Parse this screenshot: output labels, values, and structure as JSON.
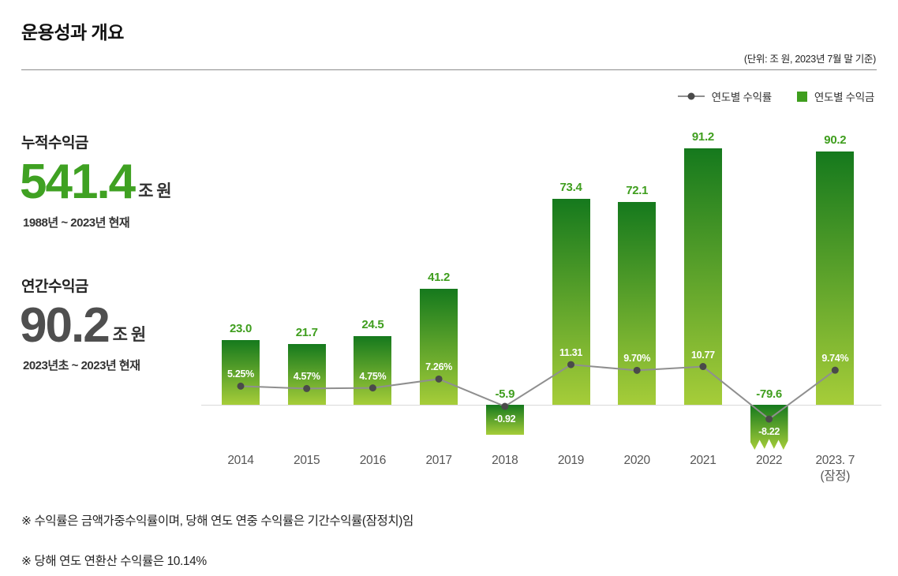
{
  "header": {
    "title": "운용성과 개요",
    "unit_note": "(단위: 조 원, 2023년 7월 말 기준)"
  },
  "summary": {
    "cumulative": {
      "label": "누적수익금",
      "value": "541.4",
      "unit": "조 원",
      "period": "1988년 ~ 2023년 현재"
    },
    "annual": {
      "label": "연간수익금",
      "value": "90.2",
      "unit": "조 원",
      "period": "2023년초 ~ 2023년 현재"
    }
  },
  "chart_data": {
    "type": "bar+line",
    "categories": [
      "2014",
      "2015",
      "2016",
      "2017",
      "2018",
      "2019",
      "2020",
      "2021",
      "2022",
      "2023. 7\n(잠정)"
    ],
    "series": [
      {
        "name": "연도별 수익금",
        "type": "bar",
        "values": [
          23.0,
          21.7,
          24.5,
          41.2,
          -5.9,
          73.4,
          72.1,
          91.2,
          -79.6,
          90.2
        ],
        "labels": [
          "23.0",
          "21.7",
          "24.5",
          "41.2",
          "-5.9",
          "73.4",
          "72.1",
          "91.2",
          "-79.6",
          "90.2"
        ]
      },
      {
        "name": "연도별 수익률",
        "type": "line",
        "values": [
          5.25,
          4.57,
          4.75,
          7.26,
          -0.92,
          11.31,
          9.7,
          10.77,
          -8.22,
          9.74
        ],
        "labels": [
          "5.25%",
          "4.57%",
          "4.75%",
          "7.26%",
          "-0.92",
          "11.31",
          "9.70%",
          "10.77",
          "-8.22",
          "9.74%"
        ]
      }
    ],
    "colors": {
      "bar_top": "#15791d",
      "bar_bottom": "#a6cd39",
      "bar_label": "#3f9e1e",
      "line": "#8f8f8f",
      "marker": "#4a4a4a",
      "rate_label": "#ffffff"
    },
    "layout": {
      "legend_position": "top-right",
      "baseline": 0,
      "gridlines": false,
      "truncated_bars": [
        8
      ]
    }
  },
  "notes": [
    "※ 수익률은 금액가중수익률이며, 당해 연도 연중 수익률은 기간수익률(잠정치)임",
    "※ 당해 연도 연환산 수익률은 10.14%"
  ]
}
